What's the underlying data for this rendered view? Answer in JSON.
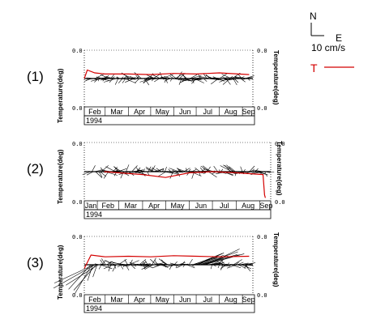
{
  "legend": {
    "north_label": "N",
    "east_label": "E",
    "scale_label": "10 cm/s",
    "temp_label": "T",
    "temp_color": "#d40000"
  },
  "chart_data": [
    {
      "type": "stick-and-line",
      "panel_label": "(1)",
      "ylabel_left": "Temperature(deg)",
      "ylabel_right": "Temperature(deg)",
      "y_tick_top": "0.0",
      "y_tick_bottom": "0.0",
      "y_tick_top_right": "0.0",
      "y_tick_bottom_right": "0.0",
      "year_label": "1994",
      "months": [
        "Feb",
        "Mar",
        "Apr",
        "May",
        "Jun",
        "Jul",
        "Aug",
        "Sep"
      ],
      "time_range": [
        "1994-02-01",
        "1994-09-15"
      ],
      "temperature_series": {
        "x": [
          "1994-02-01",
          "1994-02-05",
          "1994-02-15",
          "1994-03-01",
          "1994-04-01",
          "1994-05-01",
          "1994-06-01",
          "1994-07-01",
          "1994-08-01",
          "1994-09-10"
        ],
        "y": [
          0.5,
          0.35,
          0.4,
          0.42,
          0.42,
          0.43,
          0.41,
          0.42,
          0.4,
          0.43
        ]
      }
    },
    {
      "type": "stick-and-line",
      "panel_label": "(2)",
      "ylabel_left": "Temperature(deg)",
      "ylabel_right": "Temperature(deg)",
      "y_tick_top": "0.0",
      "y_tick_bottom": "0.0",
      "y_tick_top_right": "0.0",
      "y_tick_bottom_right": "0.0",
      "year_label": "1994",
      "months": [
        "Jan",
        "Feb",
        "Mar",
        "Apr",
        "May",
        "Jun",
        "Jul",
        "Aug",
        "Sep"
      ],
      "time_range": [
        "1994-01-15",
        "1994-09-15"
      ],
      "temperature_series": {
        "x": [
          "1994-02-10",
          "1994-03-01",
          "1994-04-01",
          "1994-05-01",
          "1994-06-01",
          "1994-07-01",
          "1994-08-01",
          "1994-09-05",
          "1994-09-07",
          "1994-09-08"
        ],
        "y": [
          0.5,
          0.52,
          0.55,
          0.6,
          0.52,
          0.5,
          0.52,
          0.55,
          0.9,
          0.95
        ]
      }
    },
    {
      "type": "stick-and-line",
      "panel_label": "(3)",
      "ylabel_left": "Temperature(deg)",
      "ylabel_right": "Temperature(deg)",
      "y_tick_top": "0.0",
      "y_tick_bottom": "0.0",
      "y_tick_top_right": "0.0",
      "y_tick_bottom_right": "0.0",
      "year_label": "1994",
      "months": [
        "Feb",
        "Mar",
        "Apr",
        "May",
        "Jun",
        "Jul",
        "Aug",
        "Sep"
      ],
      "time_range": [
        "1994-02-01",
        "1994-09-15"
      ],
      "temperature_series": {
        "x": [
          "1994-02-01",
          "1994-02-10",
          "1994-03-01",
          "1994-04-01",
          "1994-05-01",
          "1994-06-01",
          "1994-07-01",
          "1994-08-01",
          "1994-09-10"
        ],
        "y": [
          0.55,
          0.32,
          0.35,
          0.34,
          0.35,
          0.33,
          0.34,
          0.35,
          0.34
        ]
      }
    }
  ]
}
